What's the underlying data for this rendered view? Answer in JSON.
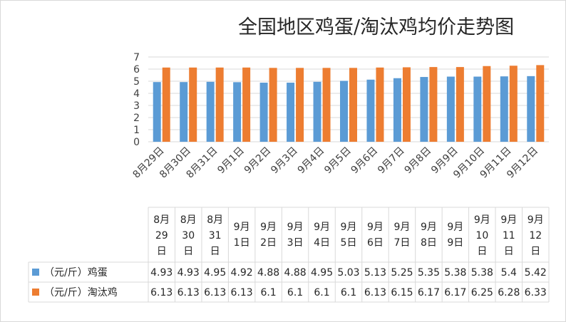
{
  "chart_data": {
    "type": "bar",
    "title": "全国地区鸡蛋/淘汰鸡均价走势图",
    "categories": [
      "8月29日",
      "8月30日",
      "8月31日",
      "9月1日",
      "9月2日",
      "9月3日",
      "9月4日",
      "9月5日",
      "9月6日",
      "9月7日",
      "9月8日",
      "9月9日",
      "9月10日",
      "9月11日",
      "9月12日"
    ],
    "table_headers": [
      [
        "8月",
        "29",
        "日"
      ],
      [
        "8月",
        "30",
        "日"
      ],
      [
        "8月",
        "31",
        "日"
      ],
      [
        "9月",
        "1日"
      ],
      [
        "9月",
        "2日"
      ],
      [
        "9月",
        "3日"
      ],
      [
        "9月",
        "4日"
      ],
      [
        "9月",
        "5日"
      ],
      [
        "9月",
        "6日"
      ],
      [
        "9月",
        "7日"
      ],
      [
        "9月",
        "8日"
      ],
      [
        "9月",
        "9日"
      ],
      [
        "9月",
        "10",
        "日"
      ],
      [
        "9月",
        "11",
        "日"
      ],
      [
        "9月",
        "12",
        "日"
      ]
    ],
    "series": [
      {
        "name": "（元/斤）鸡蛋",
        "color": "#5b9bd5",
        "values": [
          4.93,
          4.93,
          4.95,
          4.92,
          4.88,
          4.88,
          4.95,
          5.03,
          5.13,
          5.25,
          5.35,
          5.38,
          5.38,
          5.4,
          5.42
        ]
      },
      {
        "name": "（元/斤）淘汰鸡",
        "color": "#ed7d31",
        "values": [
          6.13,
          6.13,
          6.13,
          6.13,
          6.1,
          6.1,
          6.1,
          6.1,
          6.13,
          6.15,
          6.17,
          6.17,
          6.25,
          6.28,
          6.33
        ]
      }
    ],
    "ylim": [
      0,
      7
    ],
    "yticks": [
      0,
      1,
      2,
      3,
      4,
      5,
      6,
      7
    ],
    "grid": true,
    "legend": "data-table"
  }
}
